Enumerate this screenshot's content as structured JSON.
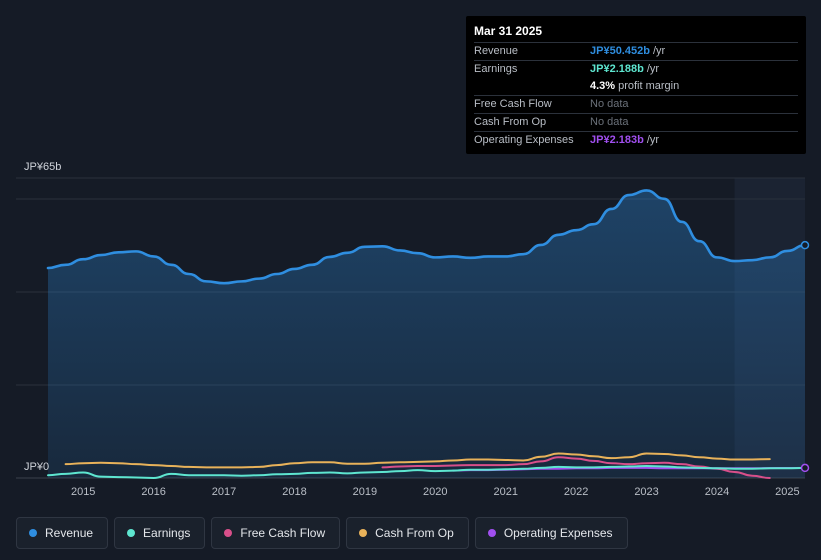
{
  "tooltip": {
    "date": "Mar 31 2025",
    "rows": [
      {
        "label": "Revenue",
        "value": "JP¥50.452b",
        "unit": "/yr"
      },
      {
        "label": "Earnings",
        "value": "JP¥2.188b",
        "unit": "/yr"
      },
      {
        "label": "",
        "value": "4.3%",
        "unit": "profit margin"
      },
      {
        "label": "Free Cash Flow",
        "value": "No data",
        "unit": ""
      },
      {
        "label": "Cash From Op",
        "value": "No data",
        "unit": ""
      },
      {
        "label": "Operating Expenses",
        "value": "JP¥2.183b",
        "unit": "/yr"
      }
    ]
  },
  "legend": [
    {
      "label": "Revenue",
      "color": "#2f8ee0"
    },
    {
      "label": "Earnings",
      "color": "#5ee6d0"
    },
    {
      "label": "Free Cash Flow",
      "color": "#d84f8a"
    },
    {
      "label": "Cash From Op",
      "color": "#e8b25a"
    },
    {
      "label": "Operating Expenses",
      "color": "#a14ff0"
    }
  ],
  "chart_data": {
    "type": "area",
    "title": "",
    "xlabel": "",
    "ylabel": "",
    "y_tick_labels": [
      "JP¥65b",
      "JP¥0"
    ],
    "ylim": [
      0,
      65
    ],
    "xlim": [
      2014.5,
      2025.25
    ],
    "x_ticks": [
      2015,
      2016,
      2017,
      2018,
      2019,
      2020,
      2021,
      2022,
      2023,
      2024,
      2025
    ],
    "x_tick_labels": [
      "2015",
      "2016",
      "2017",
      "2018",
      "2019",
      "2020",
      "2021",
      "2022",
      "2023",
      "2024",
      "2025"
    ],
    "forecast_start": 2024.25,
    "series": [
      {
        "name": "Revenue",
        "color": "#2f8ee0",
        "fill": true,
        "points": [
          [
            2014.5,
            45.5
          ],
          [
            2014.75,
            46.2
          ],
          [
            2015.0,
            47.4
          ],
          [
            2015.25,
            48.3
          ],
          [
            2015.5,
            48.9
          ],
          [
            2015.75,
            49.1
          ],
          [
            2016.0,
            48.0
          ],
          [
            2016.25,
            46.2
          ],
          [
            2016.5,
            44.2
          ],
          [
            2016.75,
            42.6
          ],
          [
            2017.0,
            42.2
          ],
          [
            2017.25,
            42.6
          ],
          [
            2017.5,
            43.2
          ],
          [
            2017.75,
            44.2
          ],
          [
            2018.0,
            45.3
          ],
          [
            2018.25,
            46.2
          ],
          [
            2018.5,
            47.9
          ],
          [
            2018.75,
            48.8
          ],
          [
            2019.0,
            50.1
          ],
          [
            2019.25,
            50.2
          ],
          [
            2019.5,
            49.3
          ],
          [
            2019.75,
            48.7
          ],
          [
            2020.0,
            47.8
          ],
          [
            2020.25,
            48.0
          ],
          [
            2020.5,
            47.7
          ],
          [
            2020.75,
            48.0
          ],
          [
            2021.0,
            48.0
          ],
          [
            2021.25,
            48.5
          ],
          [
            2021.5,
            50.5
          ],
          [
            2021.75,
            52.7
          ],
          [
            2022.0,
            53.7
          ],
          [
            2022.25,
            55.0
          ],
          [
            2022.5,
            58.3
          ],
          [
            2022.75,
            61.3
          ],
          [
            2023.0,
            62.3
          ],
          [
            2023.25,
            60.5
          ],
          [
            2023.5,
            55.5
          ],
          [
            2023.75,
            51.3
          ],
          [
            2024.0,
            47.8
          ],
          [
            2024.25,
            47.0
          ],
          [
            2024.5,
            47.2
          ],
          [
            2024.75,
            47.8
          ],
          [
            2025.0,
            49.2
          ],
          [
            2025.25,
            50.452
          ]
        ]
      },
      {
        "name": "Earnings",
        "color": "#5ee6d0",
        "fill": false,
        "points": [
          [
            2014.5,
            0.6
          ],
          [
            2014.75,
            0.9
          ],
          [
            2015.0,
            1.2
          ],
          [
            2015.25,
            0.3
          ],
          [
            2015.5,
            0.2
          ],
          [
            2015.75,
            0.1
          ],
          [
            2016.0,
            0.0
          ],
          [
            2016.25,
            0.9
          ],
          [
            2016.5,
            0.6
          ],
          [
            2016.75,
            0.6
          ],
          [
            2017.0,
            0.6
          ],
          [
            2017.25,
            0.5
          ],
          [
            2017.5,
            0.6
          ],
          [
            2017.75,
            0.8
          ],
          [
            2018.0,
            0.9
          ],
          [
            2018.25,
            1.1
          ],
          [
            2018.5,
            1.2
          ],
          [
            2018.75,
            1.0
          ],
          [
            2019.0,
            1.2
          ],
          [
            2019.25,
            1.3
          ],
          [
            2019.5,
            1.5
          ],
          [
            2019.75,
            1.7
          ],
          [
            2020.0,
            1.5
          ],
          [
            2020.25,
            1.6
          ],
          [
            2020.5,
            1.8
          ],
          [
            2020.75,
            1.8
          ],
          [
            2021.0,
            1.9
          ],
          [
            2021.25,
            2.0
          ],
          [
            2021.5,
            2.2
          ],
          [
            2021.75,
            2.4
          ],
          [
            2022.0,
            2.3
          ],
          [
            2022.25,
            2.3
          ],
          [
            2022.5,
            2.4
          ],
          [
            2022.75,
            2.5
          ],
          [
            2023.0,
            2.6
          ],
          [
            2023.25,
            2.5
          ],
          [
            2023.5,
            2.3
          ],
          [
            2023.75,
            2.2
          ],
          [
            2024.0,
            2.1
          ],
          [
            2024.25,
            2.0
          ],
          [
            2024.5,
            2.0
          ],
          [
            2024.75,
            2.1
          ],
          [
            2025.0,
            2.1
          ],
          [
            2025.25,
            2.188
          ]
        ]
      },
      {
        "name": "Free Cash Flow",
        "color": "#d84f8a",
        "fill": false,
        "points": [
          [
            2019.25,
            2.3
          ],
          [
            2019.5,
            2.5
          ],
          [
            2019.75,
            2.6
          ],
          [
            2020.0,
            2.6
          ],
          [
            2020.25,
            2.7
          ],
          [
            2020.5,
            2.8
          ],
          [
            2020.75,
            2.8
          ],
          [
            2021.0,
            2.8
          ],
          [
            2021.25,
            3.0
          ],
          [
            2021.5,
            3.6
          ],
          [
            2021.75,
            4.5
          ],
          [
            2022.0,
            4.2
          ],
          [
            2022.25,
            3.7
          ],
          [
            2022.5,
            3.2
          ],
          [
            2022.75,
            3.0
          ],
          [
            2023.0,
            3.2
          ],
          [
            2023.25,
            3.3
          ],
          [
            2023.5,
            3.0
          ],
          [
            2023.75,
            2.5
          ],
          [
            2024.0,
            2.0
          ],
          [
            2024.25,
            1.3
          ],
          [
            2024.5,
            0.5
          ],
          [
            2024.75,
            0.0
          ]
        ]
      },
      {
        "name": "Cash From Op",
        "color": "#e8b25a",
        "fill": false,
        "points": [
          [
            2014.75,
            3.0
          ],
          [
            2015.0,
            3.2
          ],
          [
            2015.25,
            3.3
          ],
          [
            2015.5,
            3.2
          ],
          [
            2015.75,
            3.0
          ],
          [
            2016.0,
            2.8
          ],
          [
            2016.25,
            2.6
          ],
          [
            2016.5,
            2.4
          ],
          [
            2016.75,
            2.3
          ],
          [
            2017.0,
            2.3
          ],
          [
            2017.25,
            2.3
          ],
          [
            2017.5,
            2.4
          ],
          [
            2017.75,
            2.8
          ],
          [
            2018.0,
            3.2
          ],
          [
            2018.25,
            3.4
          ],
          [
            2018.5,
            3.4
          ],
          [
            2018.75,
            3.1
          ],
          [
            2019.0,
            3.1
          ],
          [
            2019.25,
            3.3
          ],
          [
            2019.5,
            3.4
          ],
          [
            2019.75,
            3.5
          ],
          [
            2020.0,
            3.6
          ],
          [
            2020.25,
            3.8
          ],
          [
            2020.5,
            4.0
          ],
          [
            2020.75,
            4.0
          ],
          [
            2021.0,
            3.9
          ],
          [
            2021.25,
            3.8
          ],
          [
            2021.5,
            4.6
          ],
          [
            2021.75,
            5.3
          ],
          [
            2022.0,
            5.1
          ],
          [
            2022.25,
            4.7
          ],
          [
            2022.5,
            4.3
          ],
          [
            2022.75,
            4.5
          ],
          [
            2023.0,
            5.3
          ],
          [
            2023.25,
            5.2
          ],
          [
            2023.5,
            4.9
          ],
          [
            2023.75,
            4.5
          ],
          [
            2024.0,
            4.2
          ],
          [
            2024.25,
            4.0
          ],
          [
            2024.5,
            4.0
          ],
          [
            2024.75,
            4.1
          ]
        ]
      },
      {
        "name": "Operating Expenses",
        "color": "#a14ff0",
        "fill": false,
        "points": [
          [
            2020.25,
            1.6
          ],
          [
            2020.5,
            1.7
          ],
          [
            2020.75,
            1.7
          ],
          [
            2021.0,
            1.8
          ],
          [
            2021.25,
            1.9
          ],
          [
            2021.5,
            2.0
          ],
          [
            2021.75,
            2.0
          ],
          [
            2022.0,
            2.1
          ],
          [
            2022.25,
            2.1
          ],
          [
            2022.5,
            2.2
          ],
          [
            2022.75,
            2.2
          ],
          [
            2023.0,
            2.2
          ],
          [
            2023.25,
            2.1
          ],
          [
            2023.5,
            2.1
          ],
          [
            2023.75,
            2.1
          ],
          [
            2024.0,
            2.1
          ],
          [
            2024.25,
            2.1
          ],
          [
            2024.5,
            2.1
          ],
          [
            2024.75,
            2.15
          ],
          [
            2025.0,
            2.17
          ],
          [
            2025.25,
            2.183
          ]
        ]
      }
    ]
  }
}
